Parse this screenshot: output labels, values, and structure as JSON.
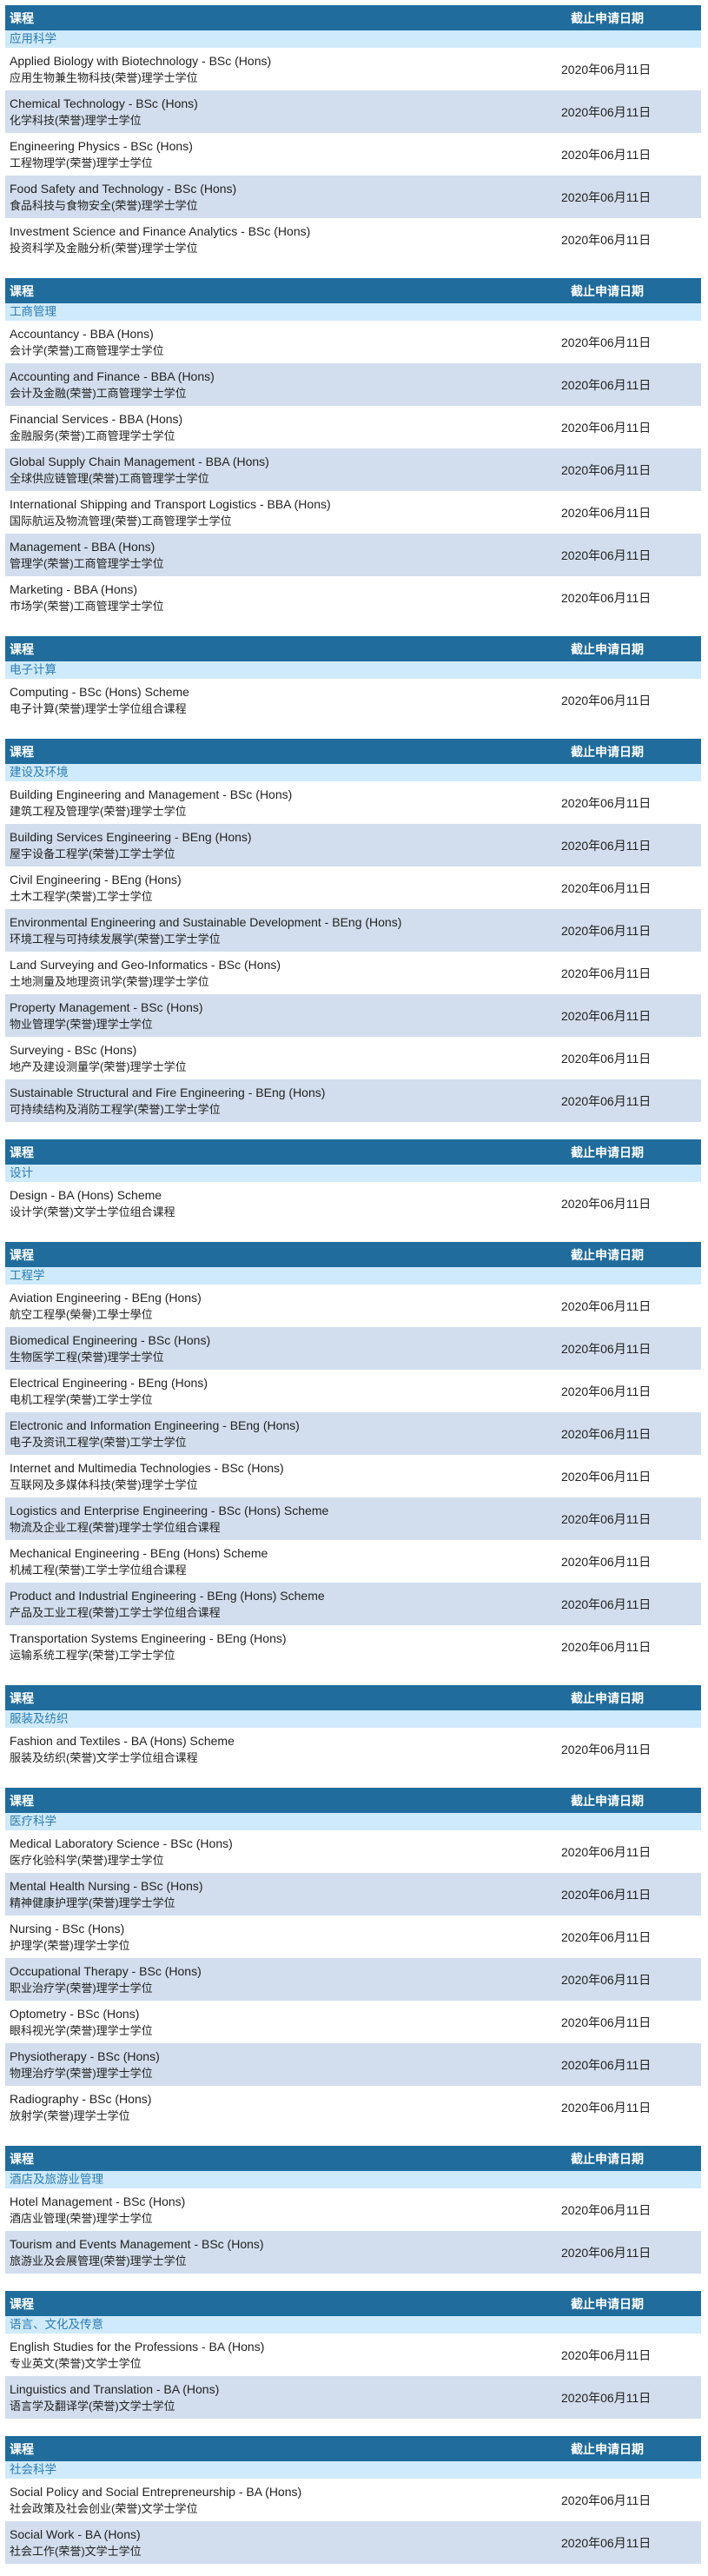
{
  "header": {
    "course_label": "课程",
    "deadline_label": "截止申请日期"
  },
  "colors": {
    "header_bg": "#1f6c9d",
    "category_bg": "#cfeafb",
    "category_text": "#2c7cb3",
    "alt_row_bg": "#d2deed"
  },
  "sections": [
    {
      "category": "应用科学",
      "rows": [
        {
          "en": "Applied Biology with Biotechnology - BSc (Hons)",
          "zh": "应用生物兼生物科技(荣誉)理学士学位",
          "date": "2020年06月11日"
        },
        {
          "en": "Chemical Technology - BSc (Hons)",
          "zh": "化学科技(荣誉)理学士学位",
          "date": "2020年06月11日"
        },
        {
          "en": "Engineering Physics - BSc (Hons)",
          "zh": "工程物理学(荣誉)理学士学位",
          "date": "2020年06月11日"
        },
        {
          "en": "Food Safety and Technology - BSc (Hons)",
          "zh": "食品科技与食物安全(荣誉)理学士学位",
          "date": "2020年06月11日"
        },
        {
          "en": "Investment Science and Finance Analytics - BSc (Hons)",
          "zh": "投资科学及金融分析(荣誉)理学士学位",
          "date": "2020年06月11日"
        }
      ]
    },
    {
      "category": "工商管理",
      "rows": [
        {
          "en": "Accountancy - BBA (Hons)",
          "zh": "会计学(荣誉)工商管理学士学位",
          "date": "2020年06月11日"
        },
        {
          "en": "Accounting and Finance - BBA (Hons)",
          "zh": "会计及金融(荣誉)工商管理学士学位",
          "date": "2020年06月11日"
        },
        {
          "en": "Financial Services - BBA (Hons)",
          "zh": "金融服务(荣誉)工商管理学士学位",
          "date": "2020年06月11日"
        },
        {
          "en": "Global Supply Chain Management - BBA (Hons)",
          "zh": "全球供应链管理(荣誉)工商管理学士学位",
          "date": "2020年06月11日"
        },
        {
          "en": "International Shipping and Transport Logistics - BBA (Hons)",
          "zh": "国际航运及物流管理(荣誉)工商管理学士学位",
          "date": "2020年06月11日"
        },
        {
          "en": "Management - BBA (Hons)",
          "zh": "管理学(荣誉)工商管理学士学位",
          "date": "2020年06月11日"
        },
        {
          "en": "Marketing - BBA (Hons)",
          "zh": "市场学(荣誉)工商管理学士学位",
          "date": "2020年06月11日"
        }
      ]
    },
    {
      "category": "电子计算",
      "rows": [
        {
          "en": "Computing - BSc (Hons) Scheme",
          "zh": "电子计算(荣誉)理学士学位组合课程",
          "date": "2020年06月11日"
        }
      ]
    },
    {
      "category": "建设及环境",
      "rows": [
        {
          "en": "Building Engineering and Management - BSc (Hons)",
          "zh": "建筑工程及管理学(荣誉)理学士学位",
          "date": "2020年06月11日"
        },
        {
          "en": "Building Services Engineering - BEng (Hons)",
          "zh": "屋宇设备工程学(荣誉)工学士学位",
          "date": "2020年06月11日"
        },
        {
          "en": "Civil Engineering - BEng (Hons)",
          "zh": "土木工程学(荣誉)工学士学位",
          "date": "2020年06月11日"
        },
        {
          "en": "Environmental Engineering and Sustainable Development - BEng (Hons)",
          "zh": "环境工程与可持续发展学(荣誉)工学士学位",
          "date": "2020年06月11日"
        },
        {
          "en": "Land Surveying and Geo-Informatics - BSc (Hons)",
          "zh": "土地测量及地理资讯学(荣誉)理学士学位",
          "date": "2020年06月11日"
        },
        {
          "en": "Property Management - BSc (Hons)",
          "zh": "物业管理学(荣誉)理学士学位",
          "date": "2020年06月11日"
        },
        {
          "en": "Surveying - BSc (Hons)",
          "zh": "地产及建设测量学(荣誉)理学士学位",
          "date": "2020年06月11日"
        },
        {
          "en": "Sustainable Structural and Fire Engineering - BEng (Hons)",
          "zh": "可持续结构及消防工程学(荣誉)工学士学位",
          "date": "2020年06月11日"
        }
      ]
    },
    {
      "category": "设计",
      "rows": [
        {
          "en": "Design - BA (Hons) Scheme",
          "zh": "设计学(荣誉)文学士学位组合课程",
          "date": "2020年06月11日"
        }
      ]
    },
    {
      "category": "工程学",
      "rows": [
        {
          "en": "Aviation Engineering - BEng (Hons)",
          "zh": "航空工程學(榮譽)工學士學位",
          "date": "2020年06月11日"
        },
        {
          "en": "Biomedical Engineering - BSc (Hons)",
          "zh": "生物医学工程(荣誉)理学士学位",
          "date": "2020年06月11日"
        },
        {
          "en": "Electrical Engineering - BEng (Hons)",
          "zh": "电机工程学(荣誉)工学士学位",
          "date": "2020年06月11日"
        },
        {
          "en": "Electronic and Information Engineering - BEng (Hons)",
          "zh": "电子及资讯工程学(荣誉)工学士学位",
          "date": "2020年06月11日"
        },
        {
          "en": "Internet and Multimedia Technologies - BSc (Hons)",
          "zh": "互联网及多媒体科技(荣誉)理学士学位",
          "date": "2020年06月11日"
        },
        {
          "en": "Logistics and Enterprise Engineering - BSc (Hons) Scheme",
          "zh": "物流及企业工程(荣誉)理学士学位组合课程",
          "date": "2020年06月11日"
        },
        {
          "en": "Mechanical Engineering - BEng (Hons) Scheme",
          "zh": "机械工程(荣誉)工学士学位组合课程",
          "date": "2020年06月11日"
        },
        {
          "en": "Product and Industrial Engineering - BEng (Hons) Scheme",
          "zh": "产品及工业工程(荣誉)工学士学位组合课程",
          "date": "2020年06月11日"
        },
        {
          "en": "Transportation Systems Engineering - BEng (Hons)",
          "zh": "运输系统工程学(荣誉)工学士学位",
          "date": "2020年06月11日"
        }
      ]
    },
    {
      "category": "服装及纺织",
      "rows": [
        {
          "en": "Fashion and Textiles - BA (Hons) Scheme",
          "zh": "服装及纺织(荣誉)文学士学位组合课程",
          "date": "2020年06月11日"
        }
      ]
    },
    {
      "category": "医疗科学",
      "rows": [
        {
          "en": "Medical Laboratory Science - BSc (Hons)",
          "zh": "医疗化验科学(荣誉)理学士学位",
          "date": "2020年06月11日"
        },
        {
          "en": "Mental Health Nursing - BSc (Hons)",
          "zh": "精神健康护理学(荣誉)理学士学位",
          "date": "2020年06月11日"
        },
        {
          "en": "Nursing - BSc (Hons)",
          "zh": "护理学(荣誉)理学士学位",
          "date": "2020年06月11日"
        },
        {
          "en": "Occupational Therapy - BSc (Hons)",
          "zh": "职业治疗学(荣誉)理学士学位",
          "date": "2020年06月11日"
        },
        {
          "en": "Optometry - BSc (Hons)",
          "zh": "眼科视光学(荣誉)理学士学位",
          "date": "2020年06月11日"
        },
        {
          "en": "Physiotherapy - BSc (Hons)",
          "zh": "物理治疗学(荣誉)理学士学位",
          "date": "2020年06月11日"
        },
        {
          "en": "Radiography - BSc (Hons)",
          "zh": "放射学(荣誉)理学士学位",
          "date": "2020年06月11日"
        }
      ]
    },
    {
      "category": "酒店及旅游业管理",
      "rows": [
        {
          "en": "Hotel Management - BSc (Hons)",
          "zh": "酒店业管理(荣誉)理学士学位",
          "date": "2020年06月11日"
        },
        {
          "en": "Tourism and Events Management - BSc (Hons)",
          "zh": "旅游业及会展管理(荣誉)理学士学位",
          "date": "2020年06月11日"
        }
      ]
    },
    {
      "category": "语言、文化及传意",
      "rows": [
        {
          "en": "English Studies for the Professions - BA (Hons)",
          "zh": "专业英文(荣誉)文学士学位",
          "date": "2020年06月11日"
        },
        {
          "en": "Linguistics and Translation - BA (Hons)",
          "zh": "语言学及翻译学(荣誉)文学士学位",
          "date": "2020年06月11日"
        }
      ]
    },
    {
      "category": "社会科学",
      "rows": [
        {
          "en": "Social Policy and Social Entrepreneurship - BA (Hons)",
          "zh": "社会政策及社会创业(荣誉)文学士学位",
          "date": "2020年06月11日"
        },
        {
          "en": "Social Work - BA (Hons)",
          "zh": "社会工作(荣誉)文学士学位",
          "date": "2020年06月11日"
        }
      ]
    }
  ]
}
